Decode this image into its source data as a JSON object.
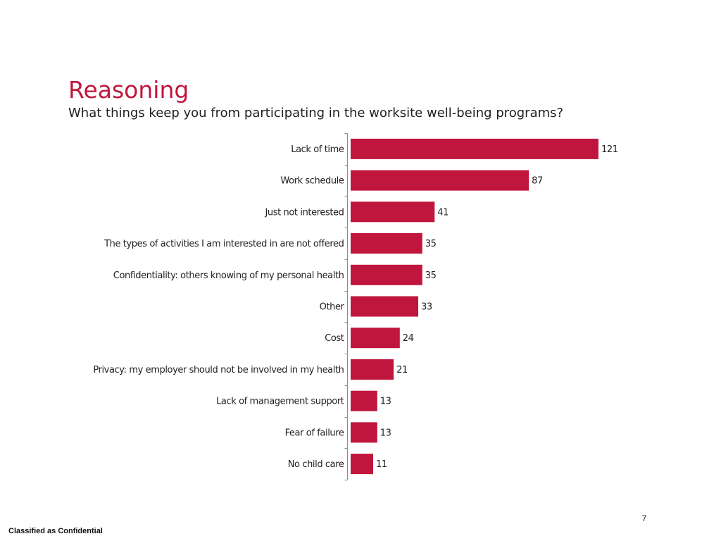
{
  "slide": {
    "title": "Reasoning",
    "subtitle": "What things keep you from participating in the worksite well-being programs?",
    "page_number": "7",
    "classification": "Classified as Confidential"
  },
  "colors": {
    "accent": "#c0163d",
    "bar": "#c0163d",
    "axis": "#8c8c8c"
  },
  "chart_data": {
    "type": "bar",
    "orientation": "horizontal",
    "title": "",
    "xlabel": "",
    "ylabel": "",
    "xlim": [
      0,
      121
    ],
    "grid": false,
    "legend": "none",
    "categories": [
      "Lack of time",
      "Work schedule",
      "Just not interested",
      "The types of activities I am interested in are not offered",
      "Confidentiality: others knowing of my personal health",
      "Other",
      "Cost",
      "Privacy: my employer should not be involved in my health",
      "Lack of management support",
      "Fear of failure",
      "No child care"
    ],
    "values": [
      121,
      87,
      41,
      35,
      35,
      33,
      24,
      21,
      13,
      13,
      11
    ]
  }
}
